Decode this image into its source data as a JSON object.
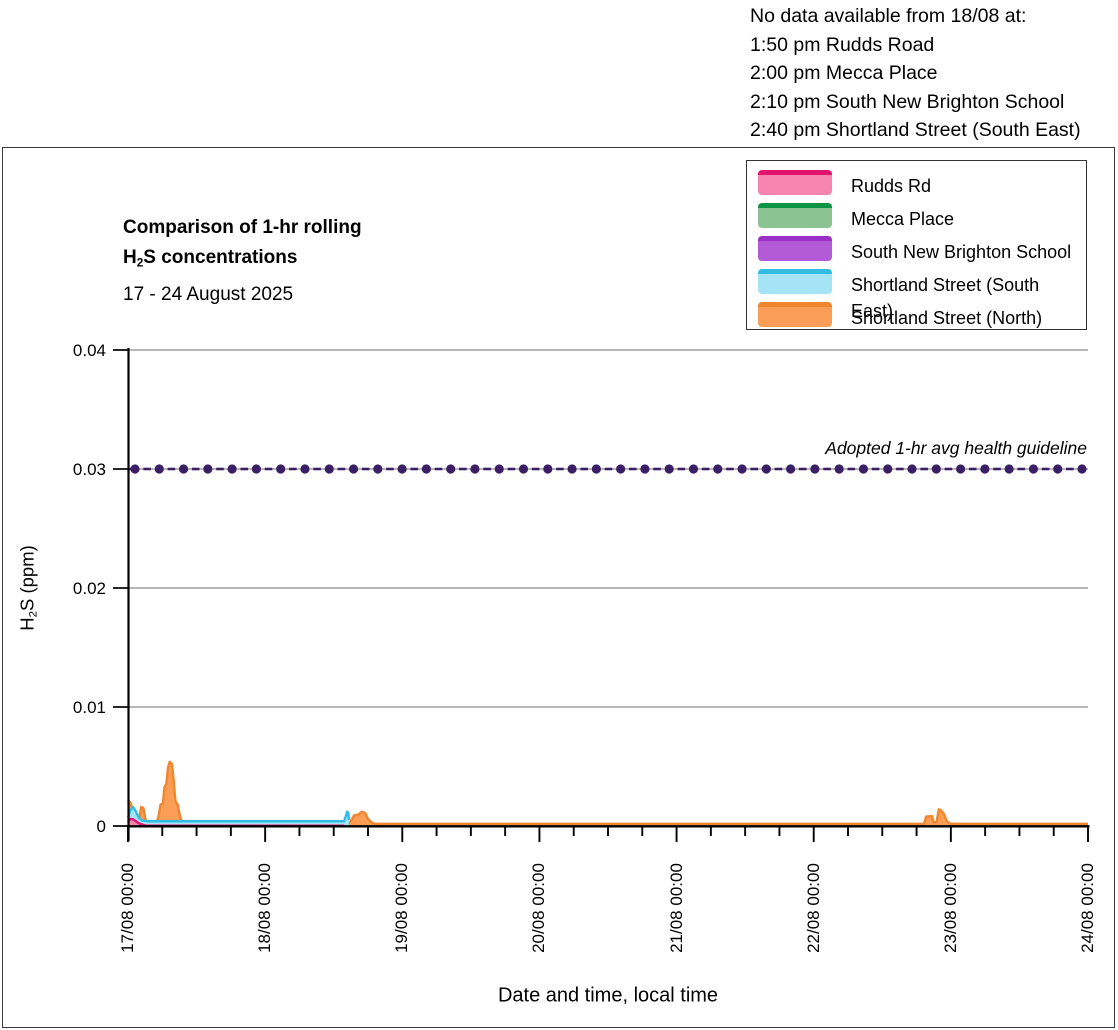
{
  "notice": {
    "heading": "No data available from 18/08 at:",
    "lines": [
      "1:50 pm Rudds Road",
      "2:00 pm Mecca Place",
      "2:10 pm South New Brighton School",
      "2:40 pm Shortland Street (South East)"
    ]
  },
  "titles": {
    "line1": "Comparison of 1-hr rolling",
    "line2_pre": "H",
    "line2_sub": "2",
    "line2_post": "S concentrations",
    "subtitle": "17 - 24 August 2025"
  },
  "legend": {
    "labels": [
      "Rudds Rd",
      "Mecca Place",
      "South New Brighton School",
      "Shortland Street (South East)",
      "Shortland Street (North)"
    ]
  },
  "chart_data": {
    "type": "area",
    "x_axis": {
      "title": "Date and time, local time",
      "tick_labels": [
        "17/08 00:00",
        "18/08 00:00",
        "19/08 00:00",
        "20/08 00:00",
        "21/08 00:00",
        "22/08 00:00",
        "23/08 00:00",
        "24/08 00:00"
      ],
      "hours_span": 168,
      "hours_per_day": 24,
      "minor_tick_hours": 6
    },
    "y_axis": {
      "title_pre": "H",
      "title_sub": "2",
      "title_post": "S (ppm)",
      "tick_labels": [
        "0",
        "0.01",
        "0.02",
        "0.03",
        "0.04"
      ],
      "tick_values": [
        0,
        0.01,
        0.02,
        0.03,
        0.04
      ],
      "range": [
        0,
        0.04
      ]
    },
    "guideline": {
      "label": "Adopted 1-hr avg health guideline",
      "value": 0.03,
      "color": "#3A1F66"
    },
    "grid_color": "#8C8C8C",
    "axis_color": "#000000",
    "paint_order": [
      "Mecca Place",
      "South New Brighton School",
      "Shortland Street (North)",
      "Shortland Street (South East)",
      "Rudds Rd"
    ],
    "series": [
      {
        "name": "Rudds Rd",
        "line_color": "#E3146E",
        "fill_color": "#F585AF",
        "points": [
          [
            0,
            0.00035
          ],
          [
            0.4,
            0.0006
          ],
          [
            0.9,
            0.00055
          ],
          [
            1.4,
            0.0004
          ],
          [
            2.0,
            0.0002
          ],
          [
            2.6,
            0.0001
          ],
          [
            3.2,
            2e-05
          ],
          [
            37.83,
            2e-05
          ]
        ]
      },
      {
        "name": "Mecca Place",
        "line_color": "#0B9444",
        "fill_color": "#8BC492",
        "points": [
          [
            0,
            2e-05
          ],
          [
            38.0,
            2e-05
          ]
        ]
      },
      {
        "name": "South New Brighton School",
        "line_color": "#9B30C8",
        "fill_color": "#B35AD7",
        "points": [
          [
            0,
            2e-05
          ],
          [
            38.17,
            2e-05
          ]
        ]
      },
      {
        "name": "Shortland Street (South East)",
        "line_color": "#33BCE3",
        "fill_color": "#A5E4F5",
        "points": [
          [
            0,
            0.0007
          ],
          [
            0.4,
            0.0013
          ],
          [
            0.9,
            0.0016
          ],
          [
            1.4,
            0.0012
          ],
          [
            1.9,
            0.0007
          ],
          [
            2.5,
            0.00045
          ],
          [
            3.5,
            0.0004
          ],
          [
            37.8,
            0.0004
          ],
          [
            38.1,
            0.0008
          ],
          [
            38.35,
            0.0012
          ],
          [
            38.55,
            0.0011
          ],
          [
            38.67,
            0.0005
          ]
        ]
      },
      {
        "name": "Shortland Street (North)",
        "line_color": "#F0862E",
        "fill_color": "#F99D57",
        "points": [
          [
            0,
            0.0022
          ],
          [
            0.5,
            0.0019
          ],
          [
            1.0,
            0.0009
          ],
          [
            1.6,
            0.0003
          ],
          [
            2.0,
            0.0007
          ],
          [
            2.3,
            0.0016
          ],
          [
            2.7,
            0.0015
          ],
          [
            3.1,
            0.0005
          ],
          [
            3.6,
            0.0002
          ],
          [
            4.9,
            0.0002
          ],
          [
            5.3,
            0.0007
          ],
          [
            5.7,
            0.0018
          ],
          [
            6.1,
            0.0019
          ],
          [
            6.4,
            0.0033
          ],
          [
            6.7,
            0.0035
          ],
          [
            7.0,
            0.0049
          ],
          [
            7.3,
            0.0054
          ],
          [
            7.7,
            0.0052
          ],
          [
            8.0,
            0.0038
          ],
          [
            8.3,
            0.0021
          ],
          [
            8.7,
            0.0018
          ],
          [
            9.1,
            0.0008
          ],
          [
            9.5,
            0.0003
          ],
          [
            10.2,
            0.00018
          ],
          [
            38.6,
            0.00018
          ],
          [
            39.1,
            0.0005
          ],
          [
            39.6,
            0.0009
          ],
          [
            40.3,
            0.00095
          ],
          [
            40.9,
            0.0012
          ],
          [
            41.5,
            0.0011
          ],
          [
            42.0,
            0.0006
          ],
          [
            42.6,
            0.0003
          ],
          [
            43.2,
            0.00018
          ],
          [
            139.3,
            0.00018
          ],
          [
            139.7,
            0.0008
          ],
          [
            140.7,
            0.00082
          ],
          [
            141.0,
            0.0003
          ],
          [
            141.5,
            0.00035
          ],
          [
            141.9,
            0.0014
          ],
          [
            142.3,
            0.0013
          ],
          [
            142.8,
            0.001
          ],
          [
            143.3,
            0.0004
          ],
          [
            143.9,
            0.00018
          ],
          [
            168,
            0.00018
          ]
        ]
      }
    ]
  }
}
